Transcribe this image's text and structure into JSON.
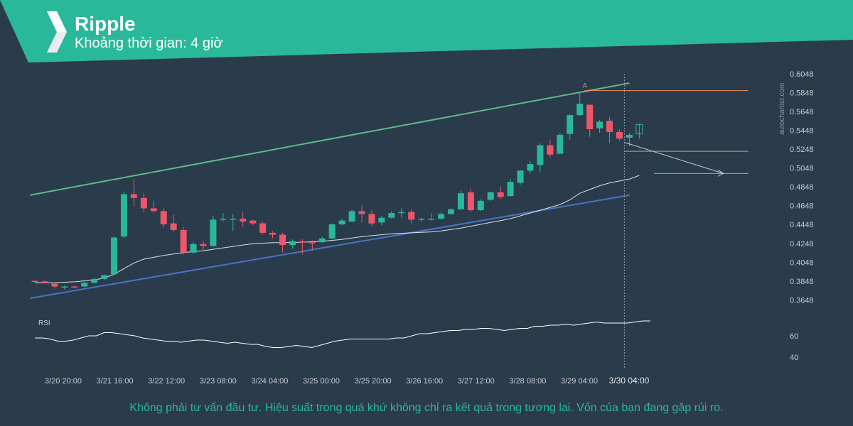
{
  "header": {
    "title": "Ripple",
    "subtitle": "Khoảng thời gian: 4 giờ"
  },
  "footer": {
    "disclaimer": "Không phải tư vấn đầu tư. Hiệu suất trong quá khứ không chỉ ra kết quả trong tương lai. Vốn của bạn đang gặp rủi ro."
  },
  "watermark": "autochartist.com",
  "colors": {
    "background": "#2a3b4c",
    "banner": "#2ab89a",
    "bull": "#2ab89a",
    "bear": "#f0566a",
    "upper_trendline": "#5fb88a",
    "lower_trendline": "#4a74c4",
    "target_lines": "#f0925a",
    "axis_text": "#c5ccd3"
  },
  "chart_data": {
    "type": "candlestick",
    "timeframe": "4h",
    "price_axis": {
      "ticks": [
        "0.6048",
        "0.5848",
        "0.5648",
        "0.5448",
        "0.5248",
        "0.5048",
        "0.4848",
        "0.4648",
        "0.4448",
        "0.4248",
        "0.4048",
        "0.3848",
        "0.3648"
      ],
      "ylim": [
        0.3628,
        0.6048
      ]
    },
    "x_axis": {
      "ticks": [
        "3/20 20:00",
        "3/21 16:00",
        "3/22 12:00",
        "3/23 08:00",
        "3/24 04:00",
        "3/25 00:00",
        "3/25 20:00",
        "3/26 16:00",
        "3/27 12:00",
        "3/28 08:00",
        "3/29 04:00",
        "3/30 04:00"
      ]
    },
    "candles": [
      {
        "o": 0.385,
        "h": 0.3855,
        "l": 0.3835,
        "c": 0.384
      },
      {
        "o": 0.3845,
        "h": 0.385,
        "l": 0.382,
        "c": 0.3825
      },
      {
        "o": 0.382,
        "h": 0.383,
        "l": 0.377,
        "c": 0.379
      },
      {
        "o": 0.378,
        "h": 0.38,
        "l": 0.376,
        "c": 0.379
      },
      {
        "o": 0.379,
        "h": 0.38,
        "l": 0.377,
        "c": 0.3785
      },
      {
        "o": 0.379,
        "h": 0.384,
        "l": 0.378,
        "c": 0.383
      },
      {
        "o": 0.383,
        "h": 0.388,
        "l": 0.382,
        "c": 0.387
      },
      {
        "o": 0.387,
        "h": 0.392,
        "l": 0.386,
        "c": 0.391
      },
      {
        "o": 0.392,
        "h": 0.432,
        "l": 0.391,
        "c": 0.431
      },
      {
        "o": 0.432,
        "h": 0.48,
        "l": 0.43,
        "c": 0.477
      },
      {
        "o": 0.477,
        "h": 0.493,
        "l": 0.464,
        "c": 0.473
      },
      {
        "o": 0.473,
        "h": 0.478,
        "l": 0.458,
        "c": 0.462
      },
      {
        "o": 0.462,
        "h": 0.47,
        "l": 0.458,
        "c": 0.459
      },
      {
        "o": 0.459,
        "h": 0.462,
        "l": 0.442,
        "c": 0.445
      },
      {
        "o": 0.446,
        "h": 0.455,
        "l": 0.437,
        "c": 0.439
      },
      {
        "o": 0.439,
        "h": 0.442,
        "l": 0.413,
        "c": 0.415
      },
      {
        "o": 0.415,
        "h": 0.426,
        "l": 0.414,
        "c": 0.424
      },
      {
        "o": 0.424,
        "h": 0.427,
        "l": 0.418,
        "c": 0.422
      },
      {
        "o": 0.422,
        "h": 0.454,
        "l": 0.421,
        "c": 0.45
      },
      {
        "o": 0.45,
        "h": 0.457,
        "l": 0.448,
        "c": 0.451
      },
      {
        "o": 0.451,
        "h": 0.456,
        "l": 0.438,
        "c": 0.451
      },
      {
        "o": 0.451,
        "h": 0.458,
        "l": 0.442,
        "c": 0.448
      },
      {
        "o": 0.449,
        "h": 0.45,
        "l": 0.444,
        "c": 0.446
      },
      {
        "o": 0.446,
        "h": 0.448,
        "l": 0.434,
        "c": 0.436
      },
      {
        "o": 0.436,
        "h": 0.438,
        "l": 0.43,
        "c": 0.434
      },
      {
        "o": 0.434,
        "h": 0.436,
        "l": 0.415,
        "c": 0.423
      },
      {
        "o": 0.423,
        "h": 0.429,
        "l": 0.419,
        "c": 0.427
      },
      {
        "o": 0.427,
        "h": 0.429,
        "l": 0.413,
        "c": 0.4255
      },
      {
        "o": 0.426,
        "h": 0.428,
        "l": 0.417,
        "c": 0.425
      },
      {
        "o": 0.426,
        "h": 0.432,
        "l": 0.425,
        "c": 0.43
      },
      {
        "o": 0.43,
        "h": 0.446,
        "l": 0.429,
        "c": 0.445
      },
      {
        "o": 0.445,
        "h": 0.451,
        "l": 0.444,
        "c": 0.449
      },
      {
        "o": 0.448,
        "h": 0.461,
        "l": 0.447,
        "c": 0.459
      },
      {
        "o": 0.459,
        "h": 0.465,
        "l": 0.447,
        "c": 0.456
      },
      {
        "o": 0.456,
        "h": 0.46,
        "l": 0.443,
        "c": 0.446
      },
      {
        "o": 0.447,
        "h": 0.454,
        "l": 0.444,
        "c": 0.452
      },
      {
        "o": 0.452,
        "h": 0.459,
        "l": 0.451,
        "c": 0.457
      },
      {
        "o": 0.457,
        "h": 0.462,
        "l": 0.452,
        "c": 0.458
      },
      {
        "o": 0.458,
        "h": 0.461,
        "l": 0.446,
        "c": 0.45
      },
      {
        "o": 0.45,
        "h": 0.452,
        "l": 0.448,
        "c": 0.451
      },
      {
        "o": 0.45,
        "h": 0.457,
        "l": 0.449,
        "c": 0.451
      },
      {
        "o": 0.451,
        "h": 0.458,
        "l": 0.45,
        "c": 0.456
      },
      {
        "o": 0.456,
        "h": 0.462,
        "l": 0.455,
        "c": 0.461
      },
      {
        "o": 0.461,
        "h": 0.481,
        "l": 0.46,
        "c": 0.478
      },
      {
        "o": 0.479,
        "h": 0.483,
        "l": 0.458,
        "c": 0.46
      },
      {
        "o": 0.46,
        "h": 0.472,
        "l": 0.459,
        "c": 0.47
      },
      {
        "o": 0.471,
        "h": 0.48,
        "l": 0.47,
        "c": 0.479
      },
      {
        "o": 0.479,
        "h": 0.485,
        "l": 0.472,
        "c": 0.474
      },
      {
        "o": 0.475,
        "h": 0.493,
        "l": 0.474,
        "c": 0.49
      },
      {
        "o": 0.489,
        "h": 0.503,
        "l": 0.487,
        "c": 0.502
      },
      {
        "o": 0.502,
        "h": 0.512,
        "l": 0.499,
        "c": 0.509
      },
      {
        "o": 0.508,
        "h": 0.531,
        "l": 0.5,
        "c": 0.529
      },
      {
        "o": 0.529,
        "h": 0.535,
        "l": 0.516,
        "c": 0.519
      },
      {
        "o": 0.52,
        "h": 0.542,
        "l": 0.519,
        "c": 0.54
      },
      {
        "o": 0.541,
        "h": 0.562,
        "l": 0.535,
        "c": 0.561
      },
      {
        "o": 0.561,
        "h": 0.586,
        "l": 0.56,
        "c": 0.573
      },
      {
        "o": 0.572,
        "h": 0.572,
        "l": 0.538,
        "c": 0.546
      },
      {
        "o": 0.547,
        "h": 0.556,
        "l": 0.542,
        "c": 0.554
      },
      {
        "o": 0.555,
        "h": 0.559,
        "l": 0.531,
        "c": 0.543
      },
      {
        "o": 0.543,
        "h": 0.546,
        "l": 0.534,
        "c": 0.536
      },
      {
        "o": 0.537,
        "h": 0.542,
        "l": 0.528,
        "c": 0.54
      },
      {
        "o": 0.541,
        "h": 0.552,
        "l": 0.536,
        "c": 0.551
      }
    ],
    "moving_average": [
      0.383,
      0.383,
      0.383,
      0.3835,
      0.384,
      0.385,
      0.386,
      0.388,
      0.392,
      0.398,
      0.404,
      0.408,
      0.41,
      0.412,
      0.4135,
      0.415,
      0.416,
      0.417,
      0.4185,
      0.42,
      0.4215,
      0.423,
      0.4245,
      0.425,
      0.4255,
      0.4255,
      0.4258,
      0.426,
      0.4265,
      0.427,
      0.428,
      0.429,
      0.4305,
      0.432,
      0.433,
      0.434,
      0.435,
      0.4355,
      0.436,
      0.4365,
      0.437,
      0.438,
      0.4395,
      0.441,
      0.443,
      0.445,
      0.447,
      0.449,
      0.451,
      0.454,
      0.457,
      0.46,
      0.463,
      0.466,
      0.471,
      0.478,
      0.482,
      0.486,
      0.489,
      0.491,
      0.493,
      0.497
    ],
    "trendlines": [
      {
        "role": "resistance",
        "from": {
          "index": -0.5,
          "price": 0.476
        },
        "to": {
          "index": 60,
          "price": 0.595
        }
      },
      {
        "role": "support",
        "from": {
          "index": -0.5,
          "price": 0.3665
        },
        "to": {
          "index": 60,
          "price": 0.476
        }
      }
    ],
    "pattern_point_label": "A",
    "levels": [
      {
        "price": 0.587,
        "from_index": 55.5,
        "to_index": 72
      },
      {
        "price": 0.5225,
        "from_index": 59.5,
        "to_index": 72
      },
      {
        "price": 0.499,
        "from_index": 62.5,
        "to_index": 72
      }
    ],
    "projection": {
      "from": {
        "index": 59.5,
        "price": 0.532
      },
      "to": {
        "index": 69.5,
        "price": 0.499
      }
    },
    "current_time_index": 59.5,
    "rsi": {
      "label": "RSI",
      "ticks": [
        60,
        40
      ],
      "values": [
        58,
        58,
        57,
        55,
        55,
        56,
        58,
        60,
        60,
        63,
        63,
        62,
        61,
        60,
        58,
        57,
        56,
        55,
        55,
        54,
        55,
        56,
        56,
        55,
        54,
        53,
        54,
        53,
        52,
        52,
        50,
        49,
        49,
        50,
        51,
        50,
        49,
        51,
        53,
        55,
        56,
        57,
        57,
        57,
        57,
        57,
        57,
        58,
        58,
        60,
        62,
        62,
        63,
        64,
        65,
        65,
        66,
        66,
        67,
        67,
        66,
        65,
        66,
        67,
        67,
        69,
        69,
        70,
        70,
        71,
        70,
        71,
        72,
        73,
        72,
        72,
        72,
        72,
        73,
        74,
        74
      ]
    }
  }
}
